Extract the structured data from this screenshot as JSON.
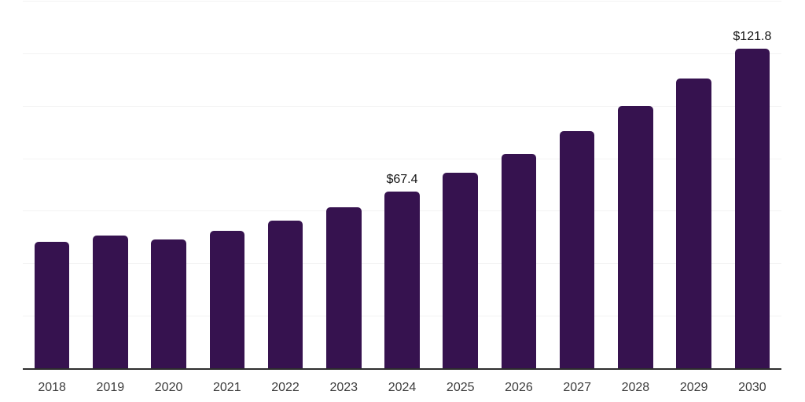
{
  "chart": {
    "background_color": "#ffffff",
    "bar_color": "#36124F",
    "gridline_color": "#f3f3f3",
    "axis_line_color": "#2e2e2e",
    "tick_label_color": "#3d3d3d",
    "data_label_color": "#141414"
  },
  "chart_data": {
    "type": "bar",
    "title": "",
    "xlabel": "",
    "ylabel": "",
    "categories": [
      "2018",
      "2019",
      "2020",
      "2021",
      "2022",
      "2023",
      "2024",
      "2025",
      "2026",
      "2027",
      "2028",
      "2029",
      "2030"
    ],
    "values": [
      48.3,
      50.5,
      49.0,
      52.4,
      56.2,
      61.2,
      67.4,
      74.4,
      81.7,
      90.4,
      99.9,
      110.5,
      121.8
    ],
    "data_labels": [
      {
        "category": "2024",
        "text": "$67.4"
      },
      {
        "category": "2030",
        "text": "$121.8"
      }
    ],
    "ylim": [
      0,
      140
    ],
    "gridline_step": 20,
    "grid": "horizontal",
    "legend": "none",
    "y_tick_labels_visible": false,
    "x_tick_labels_visible": true
  }
}
